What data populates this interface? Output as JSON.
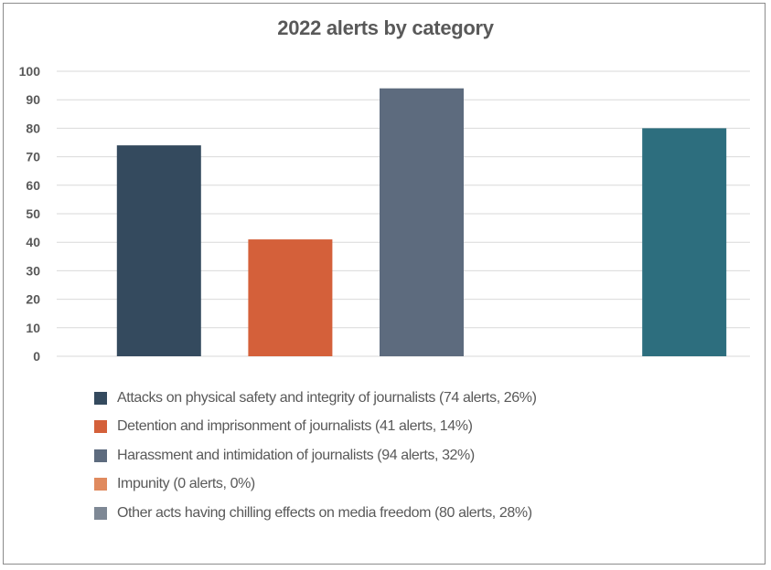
{
  "chart_data": {
    "type": "bar",
    "title": "2022 alerts by category",
    "xlabel": "",
    "ylabel": "",
    "ylim": [
      0,
      100
    ],
    "yticks": [
      0,
      10,
      20,
      30,
      40,
      50,
      60,
      70,
      80,
      90,
      100
    ],
    "grid": true,
    "legend_position": "bottom",
    "categories": [
      "Attacks on physical safety and integrity of journalists (74 alerts, 26%)",
      "Detention and imprisonment of journalists (41 alerts, 14%)",
      "Harassment and intimidation of journalists (94 alerts, 32%)",
      "Impunity (0 alerts, 0%)",
      "Other acts having chilling effects on media freedom (80 alerts, 28%)"
    ],
    "values": [
      74,
      41,
      94,
      0,
      80
    ],
    "colors": [
      "#344a5e",
      "#d4603a",
      "#5d6b7e",
      "#e08a5e",
      "#2d6e7e"
    ],
    "legend_colors": [
      "#344a5e",
      "#d4603a",
      "#5d6b7e",
      "#e08a5e",
      "#7e8895"
    ]
  }
}
